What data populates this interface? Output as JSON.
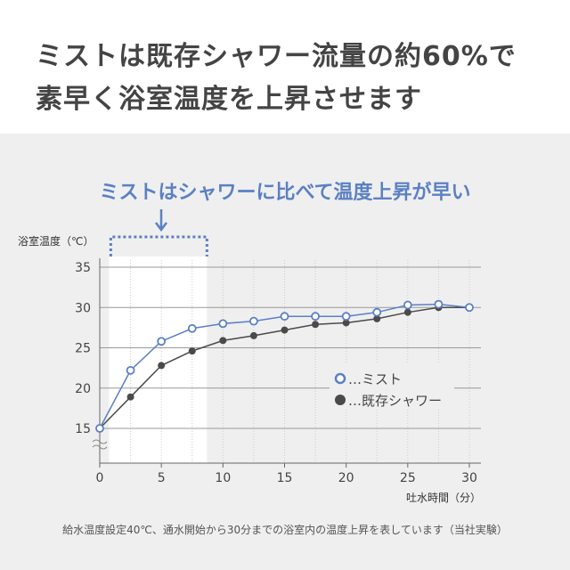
{
  "headline": [
    "ミストは既存シャワー流量の約60%で",
    "素早く浴室温度を上昇させます"
  ],
  "callout": "ミストはシャワーに比べて温度上昇が早い",
  "note": "給水温度設定40℃、通水開始から30分までの浴室内の温度上昇を表しています（当社実験）",
  "colors": {
    "mist": "#5b80c4",
    "shower": "#4a4a4a"
  },
  "chart_data": {
    "type": "line",
    "xlabel": "吐水時間（分）",
    "ylabel": "浴室温度（℃）",
    "xlim": [
      0,
      30
    ],
    "ylim": [
      15,
      35
    ],
    "xticks": [
      "0",
      "5",
      "10",
      "15",
      "20",
      "25",
      "30"
    ],
    "yticks": [
      "15",
      "20",
      "25",
      "30",
      "35"
    ],
    "highlight_range": [
      0.75,
      8.7
    ],
    "x": [
      0,
      2.5,
      5,
      7.5,
      10,
      12.5,
      15,
      17.5,
      20,
      22.5,
      25,
      27.5,
      30
    ],
    "series": [
      {
        "name": "…ミスト",
        "values": [
          15,
          22.2,
          25.8,
          27.4,
          28.0,
          28.3,
          28.9,
          28.9,
          28.9,
          29.4,
          30.3,
          30.4,
          30.0
        ]
      },
      {
        "name": "…既存シャワー",
        "values": [
          15,
          18.9,
          22.8,
          24.6,
          25.9,
          26.5,
          27.2,
          27.9,
          28.1,
          28.6,
          29.4,
          30.0,
          30.0
        ]
      }
    ],
    "legend": "right"
  }
}
